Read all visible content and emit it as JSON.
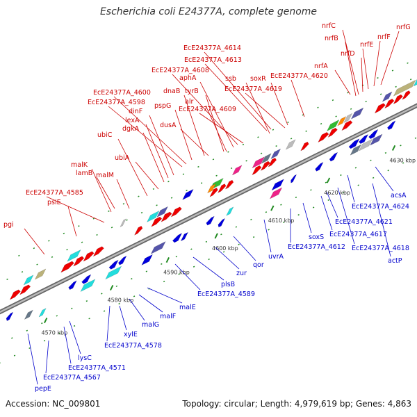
{
  "title": "Escherichia coli E24377A, complete genome",
  "footer": {
    "accession": "Accession: NC_009801",
    "summary": "Topology: circular; Length: 4,979,619 bp; Genes: 4,863"
  },
  "colors": {
    "forward_label": "#cc0000",
    "reverse_label": "#0000cc",
    "forward_feature": "#ee0000",
    "reverse_feature": "#0000dd",
    "backbone": "#999999",
    "tick": "#228b22"
  },
  "ticks": [
    "4570 kbp",
    "4580 kbp",
    "4590 kbp",
    "4600 kbp",
    "4610 kbp",
    "4620 kbp",
    "4630 kbp"
  ],
  "forward_genes": [
    "pgi",
    "EcE24377A_4585",
    "psiE",
    "lamB",
    "malK",
    "malM",
    "ubiC",
    "ubiA",
    "dgkA",
    "lexA",
    "dinF",
    "EcE24377A_4598",
    "EcE24377A_4600",
    "pspG",
    "dnaB",
    "dusA",
    "tyrB",
    "alr",
    "EcE24377A_4609",
    "aphA",
    "EcE24377A_4608",
    "EcE24377A_4613",
    "EcE24377A_4614",
    "ssb",
    "EcE24377A_4619",
    "soxR",
    "EcE24377A_4620",
    "nrfA",
    "nrfB",
    "nrfC",
    "nrfD",
    "nrfE",
    "nrfF",
    "nrfG"
  ],
  "reverse_genes": [
    "pepE",
    "EcE24377A_4567",
    "EcE24377A_4571",
    "lysC",
    "EcE24377A_4578",
    "xylE",
    "malG",
    "malF",
    "malE",
    "EcE24377A_4589",
    "plsB",
    "zur",
    "qor",
    "uvrA",
    "EcE24377A_4612",
    "soxS",
    "EcE24377A_4617",
    "EcE24377A_4621",
    "EcE24377A_4618",
    "actP",
    "EcE24377A_4624",
    "acsA"
  ]
}
